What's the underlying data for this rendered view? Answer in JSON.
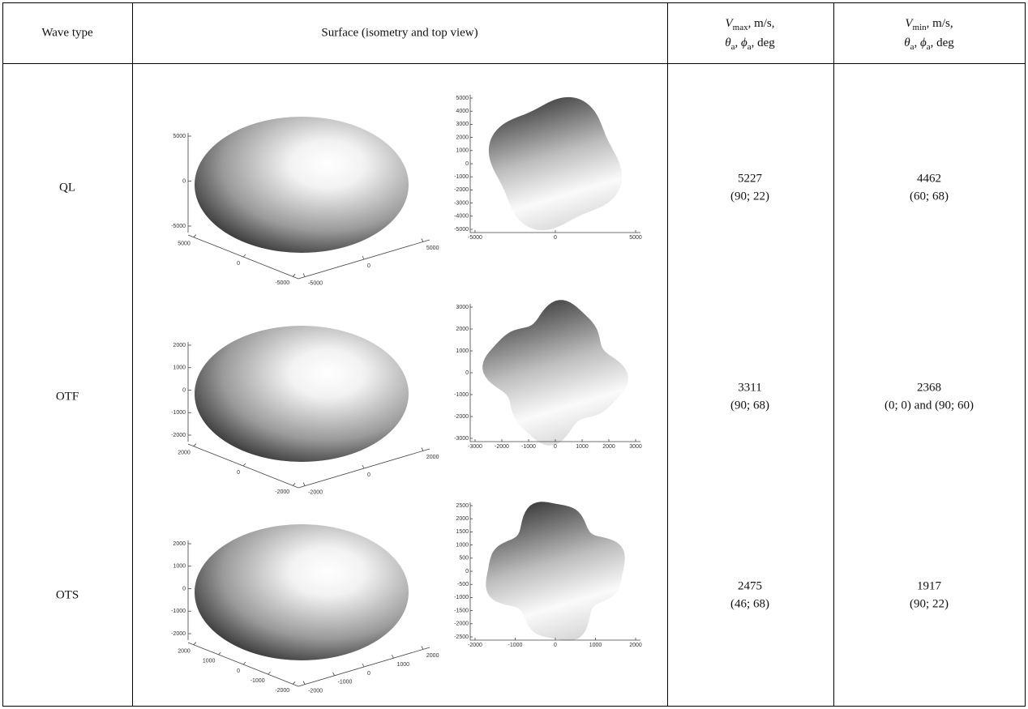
{
  "table": {
    "header": {
      "wave_type": "Wave type",
      "surface": "Surface (isometry and top view)",
      "vmax": {
        "line1": [
          "V",
          "max",
          ", m/s,"
        ],
        "line2": [
          "θ",
          "a",
          ", ",
          "ϕ",
          "a",
          ", deg"
        ]
      },
      "vmin": {
        "line1": [
          "V",
          "min",
          ", m/s,"
        ],
        "line2": [
          "θ",
          "a",
          ", ",
          "ϕ",
          "a",
          ", deg"
        ]
      }
    },
    "rows": [
      {
        "type": "QL",
        "iso": {
          "z": [
            5000,
            0,
            -5000
          ],
          "x": [
            5000,
            0,
            -5000
          ],
          "y": [
            -5000,
            0,
            5000
          ]
        },
        "top": {
          "y": [
            5000,
            4000,
            3000,
            2000,
            1000,
            0,
            -1000,
            -2000,
            -3000,
            -4000,
            -5000
          ],
          "x": [
            -5000,
            0,
            5000
          ]
        },
        "vmax": {
          "value": 5227,
          "angles": "(90; 22)"
        },
        "vmin": {
          "value": 4462,
          "angles": "(60; 68)"
        }
      },
      {
        "type": "OTF",
        "iso": {
          "z": [
            2000,
            1000,
            0,
            -1000,
            -2000
          ],
          "x": [
            2000,
            0,
            -2000
          ],
          "y": [
            -2000,
            0,
            2000
          ]
        },
        "top": {
          "y": [
            3000,
            2000,
            1000,
            0,
            -1000,
            -2000,
            -3000
          ],
          "x": [
            -3000,
            -2000,
            -1000,
            0,
            1000,
            2000,
            3000
          ]
        },
        "vmax": {
          "value": 3311,
          "angles": "(90; 68)"
        },
        "vmin": {
          "value": 2368,
          "angles": "(0; 0) and (90; 60)"
        }
      },
      {
        "type": "OTS",
        "iso": {
          "z": [
            2000,
            1000,
            0,
            -1000,
            -2000
          ],
          "x": [
            2000,
            1000,
            0,
            -1000,
            -2000
          ],
          "y": [
            -2000,
            -1000,
            0,
            1000,
            2000
          ]
        },
        "top": {
          "y": [
            2500,
            2000,
            1500,
            1000,
            500,
            0,
            -500,
            -1000,
            -1500,
            -2000,
            -2500
          ],
          "x": [
            -2000,
            -1000,
            0,
            1000,
            2000
          ]
        },
        "vmax": {
          "value": 2475,
          "angles": "(46; 68)"
        },
        "vmin": {
          "value": 1917,
          "angles": "(90; 22)"
        }
      }
    ]
  }
}
